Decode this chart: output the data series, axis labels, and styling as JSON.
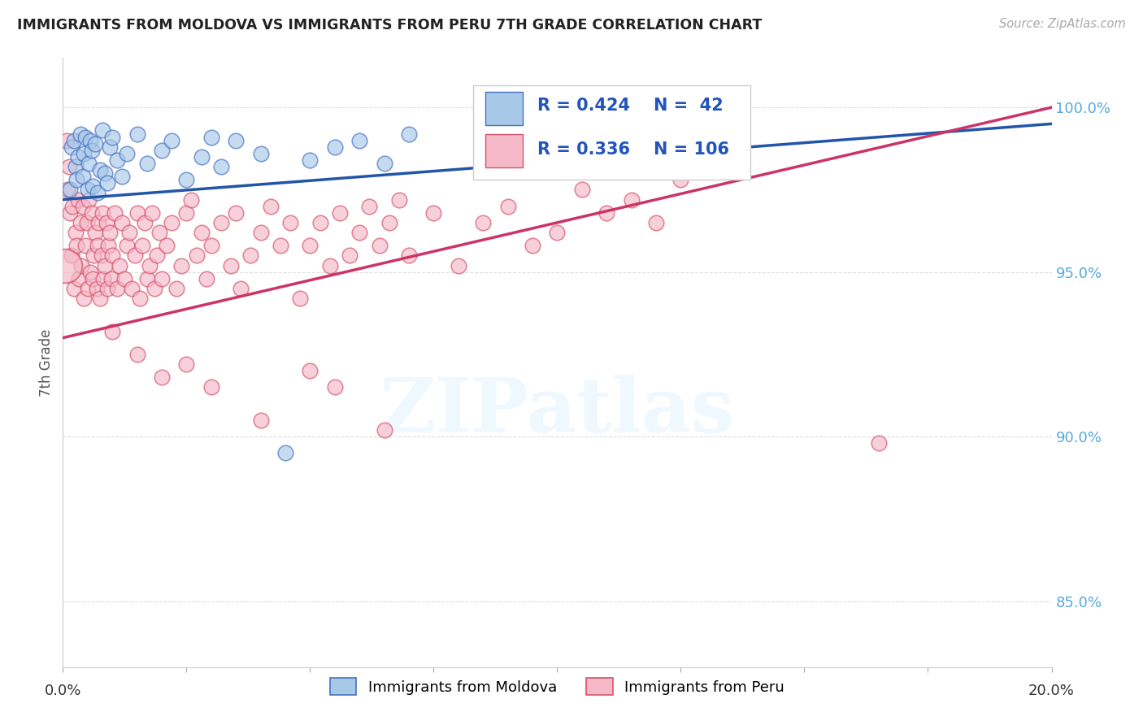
{
  "title": "IMMIGRANTS FROM MOLDOVA VS IMMIGRANTS FROM PERU 7TH GRADE CORRELATION CHART",
  "source": "Source: ZipAtlas.com",
  "ylabel": "7th Grade",
  "xlim": [
    0.0,
    20.0
  ],
  "ylim": [
    83.0,
    101.5
  ],
  "yticks": [
    85.0,
    90.0,
    95.0,
    100.0
  ],
  "ytick_labels": [
    "85.0%",
    "90.0%",
    "95.0%",
    "100.0%"
  ],
  "moldova_color": "#a8c8e8",
  "moldova_edge_color": "#4472c4",
  "peru_color": "#f4b8c8",
  "peru_edge_color": "#d4546a",
  "moldova_line_color": "#2255aa",
  "peru_line_color": "#cc3366",
  "R_moldova": 0.424,
  "N_moldova": 42,
  "R_peru": 0.336,
  "N_peru": 106,
  "moldova_trendline": [
    [
      0.0,
      97.2
    ],
    [
      20.0,
      99.5
    ]
  ],
  "peru_trendline": [
    [
      0.0,
      93.0
    ],
    [
      20.0,
      100.0
    ]
  ],
  "watermark_text": "ZIPatlas",
  "background_color": "#ffffff",
  "moldova_scatter": [
    [
      0.15,
      97.5
    ],
    [
      0.18,
      98.8
    ],
    [
      0.22,
      99.0
    ],
    [
      0.25,
      98.2
    ],
    [
      0.28,
      97.8
    ],
    [
      0.3,
      98.5
    ],
    [
      0.35,
      99.2
    ],
    [
      0.4,
      97.9
    ],
    [
      0.42,
      98.6
    ],
    [
      0.45,
      99.1
    ],
    [
      0.5,
      97.5
    ],
    [
      0.52,
      98.3
    ],
    [
      0.55,
      99.0
    ],
    [
      0.58,
      98.7
    ],
    [
      0.6,
      97.6
    ],
    [
      0.65,
      98.9
    ],
    [
      0.7,
      97.4
    ],
    [
      0.75,
      98.1
    ],
    [
      0.8,
      99.3
    ],
    [
      0.85,
      98.0
    ],
    [
      0.9,
      97.7
    ],
    [
      0.95,
      98.8
    ],
    [
      1.0,
      99.1
    ],
    [
      1.1,
      98.4
    ],
    [
      1.2,
      97.9
    ],
    [
      1.3,
      98.6
    ],
    [
      1.5,
      99.2
    ],
    [
      1.7,
      98.3
    ],
    [
      2.0,
      98.7
    ],
    [
      2.2,
      99.0
    ],
    [
      2.5,
      97.8
    ],
    [
      2.8,
      98.5
    ],
    [
      3.0,
      99.1
    ],
    [
      3.2,
      98.2
    ],
    [
      3.5,
      99.0
    ],
    [
      4.0,
      98.6
    ],
    [
      4.5,
      89.5
    ],
    [
      5.0,
      98.4
    ],
    [
      5.5,
      98.8
    ],
    [
      6.0,
      99.0
    ],
    [
      6.5,
      98.3
    ],
    [
      7.0,
      99.2
    ]
  ],
  "peru_scatter": [
    [
      0.08,
      99.0
    ],
    [
      0.1,
      97.5
    ],
    [
      0.12,
      98.2
    ],
    [
      0.15,
      96.8
    ],
    [
      0.18,
      95.5
    ],
    [
      0.2,
      97.0
    ],
    [
      0.22,
      94.5
    ],
    [
      0.25,
      96.2
    ],
    [
      0.28,
      95.8
    ],
    [
      0.3,
      97.2
    ],
    [
      0.32,
      94.8
    ],
    [
      0.35,
      96.5
    ],
    [
      0.38,
      95.2
    ],
    [
      0.4,
      97.0
    ],
    [
      0.42,
      94.2
    ],
    [
      0.45,
      95.8
    ],
    [
      0.48,
      96.5
    ],
    [
      0.5,
      94.5
    ],
    [
      0.52,
      97.2
    ],
    [
      0.55,
      95.0
    ],
    [
      0.58,
      96.8
    ],
    [
      0.6,
      94.8
    ],
    [
      0.62,
      95.5
    ],
    [
      0.65,
      96.2
    ],
    [
      0.68,
      94.5
    ],
    [
      0.7,
      95.8
    ],
    [
      0.72,
      96.5
    ],
    [
      0.75,
      94.2
    ],
    [
      0.78,
      95.5
    ],
    [
      0.8,
      96.8
    ],
    [
      0.82,
      94.8
    ],
    [
      0.85,
      95.2
    ],
    [
      0.88,
      96.5
    ],
    [
      0.9,
      94.5
    ],
    [
      0.92,
      95.8
    ],
    [
      0.95,
      96.2
    ],
    [
      0.98,
      94.8
    ],
    [
      1.0,
      95.5
    ],
    [
      1.05,
      96.8
    ],
    [
      1.1,
      94.5
    ],
    [
      1.15,
      95.2
    ],
    [
      1.2,
      96.5
    ],
    [
      1.25,
      94.8
    ],
    [
      1.3,
      95.8
    ],
    [
      1.35,
      96.2
    ],
    [
      1.4,
      94.5
    ],
    [
      1.45,
      95.5
    ],
    [
      1.5,
      96.8
    ],
    [
      1.55,
      94.2
    ],
    [
      1.6,
      95.8
    ],
    [
      1.65,
      96.5
    ],
    [
      1.7,
      94.8
    ],
    [
      1.75,
      95.2
    ],
    [
      1.8,
      96.8
    ],
    [
      1.85,
      94.5
    ],
    [
      1.9,
      95.5
    ],
    [
      1.95,
      96.2
    ],
    [
      2.0,
      94.8
    ],
    [
      2.1,
      95.8
    ],
    [
      2.2,
      96.5
    ],
    [
      2.3,
      94.5
    ],
    [
      2.4,
      95.2
    ],
    [
      2.5,
      96.8
    ],
    [
      2.6,
      97.2
    ],
    [
      2.7,
      95.5
    ],
    [
      2.8,
      96.2
    ],
    [
      2.9,
      94.8
    ],
    [
      3.0,
      95.8
    ],
    [
      3.2,
      96.5
    ],
    [
      3.4,
      95.2
    ],
    [
      3.5,
      96.8
    ],
    [
      3.6,
      94.5
    ],
    [
      3.8,
      95.5
    ],
    [
      4.0,
      96.2
    ],
    [
      4.2,
      97.0
    ],
    [
      4.4,
      95.8
    ],
    [
      4.6,
      96.5
    ],
    [
      4.8,
      94.2
    ],
    [
      5.0,
      95.8
    ],
    [
      5.2,
      96.5
    ],
    [
      5.4,
      95.2
    ],
    [
      5.6,
      96.8
    ],
    [
      5.8,
      95.5
    ],
    [
      6.0,
      96.2
    ],
    [
      6.2,
      97.0
    ],
    [
      6.4,
      95.8
    ],
    [
      6.6,
      96.5
    ],
    [
      6.8,
      97.2
    ],
    [
      7.0,
      95.5
    ],
    [
      7.5,
      96.8
    ],
    [
      8.0,
      95.2
    ],
    [
      8.5,
      96.5
    ],
    [
      9.0,
      97.0
    ],
    [
      9.5,
      95.8
    ],
    [
      10.0,
      96.2
    ],
    [
      10.5,
      97.5
    ],
    [
      11.0,
      96.8
    ],
    [
      11.5,
      97.2
    ],
    [
      12.0,
      96.5
    ],
    [
      12.5,
      97.8
    ],
    [
      1.0,
      93.2
    ],
    [
      1.5,
      92.5
    ],
    [
      2.0,
      91.8
    ],
    [
      2.5,
      92.2
    ],
    [
      3.0,
      91.5
    ],
    [
      4.0,
      90.5
    ],
    [
      5.0,
      92.0
    ],
    [
      5.5,
      91.5
    ],
    [
      6.5,
      90.2
    ],
    [
      16.5,
      89.8
    ]
  ],
  "peru_large_dot": [
    0.05,
    95.2
  ]
}
